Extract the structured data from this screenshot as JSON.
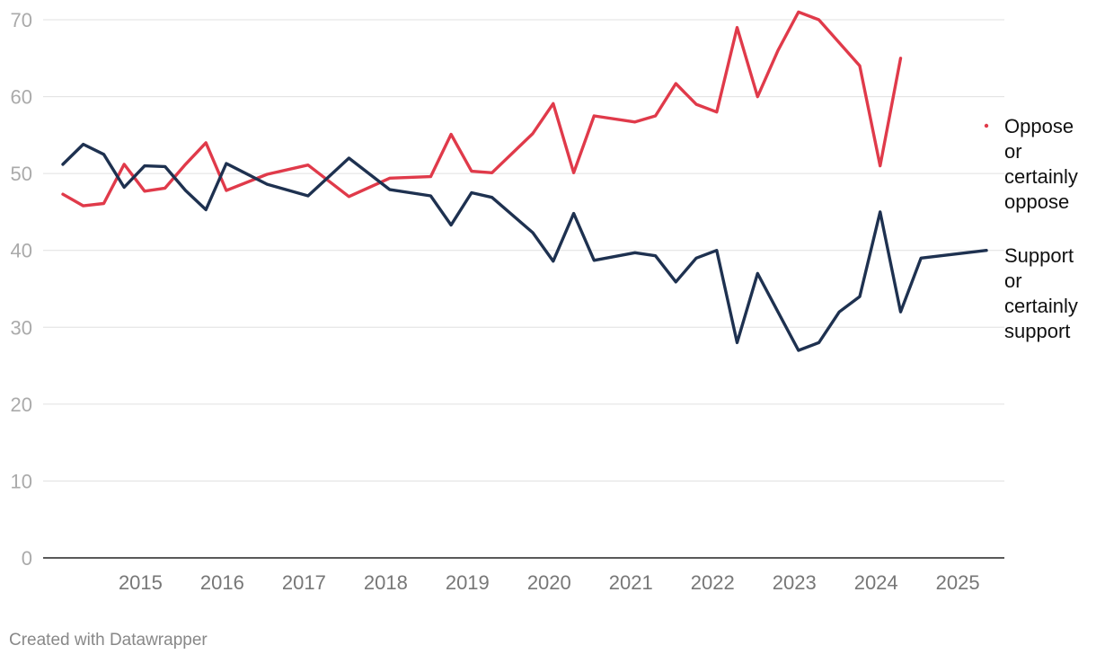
{
  "chart_data": {
    "type": "line",
    "title": "",
    "xlabel": "",
    "ylabel": "",
    "x_range": [
      2014.05,
      2025.35
    ],
    "ylim": [
      0,
      70
    ],
    "y_ticks": [
      0,
      10,
      20,
      30,
      40,
      50,
      60,
      70
    ],
    "x_tick_labels": [
      "2015",
      "2016",
      "2017",
      "2018",
      "2019",
      "2020",
      "2021",
      "2022",
      "2023",
      "2024",
      "2025"
    ],
    "grid": true,
    "legend": "right",
    "series": [
      {
        "name": "Oppose or certainly oppose",
        "legend_lines": [
          "Oppose",
          "or",
          "certainly",
          "oppose"
        ],
        "color": "#e03a4a",
        "points": [
          [
            2014.05,
            47.3
          ],
          [
            2014.3,
            45.8
          ],
          [
            2014.55,
            46.1
          ],
          [
            2014.8,
            51.2
          ],
          [
            2015.05,
            47.7
          ],
          [
            2015.3,
            48.1
          ],
          [
            2015.55,
            51.2
          ],
          [
            2015.8,
            54.0
          ],
          [
            2016.05,
            47.8
          ],
          [
            2016.55,
            49.9
          ],
          [
            2017.05,
            51.1
          ],
          [
            2017.55,
            47.0
          ],
          [
            2018.05,
            49.4
          ],
          [
            2018.55,
            49.6
          ],
          [
            2018.8,
            55.1
          ],
          [
            2019.05,
            50.3
          ],
          [
            2019.3,
            50.1
          ],
          [
            2019.8,
            55.2
          ],
          [
            2020.05,
            59.1
          ],
          [
            2020.3,
            50.1
          ],
          [
            2020.55,
            57.5
          ],
          [
            2021.05,
            56.7
          ],
          [
            2021.3,
            57.5
          ],
          [
            2021.55,
            61.7
          ],
          [
            2021.8,
            59.0
          ],
          [
            2022.05,
            58.0
          ],
          [
            2022.3,
            69.0
          ],
          [
            2022.55,
            60.0
          ],
          [
            2022.8,
            66.0
          ],
          [
            2023.05,
            71.0
          ],
          [
            2023.3,
            70.0
          ],
          [
            2023.8,
            64.0
          ],
          [
            2024.05,
            51.0
          ],
          [
            2024.3,
            65.0
          ]
        ]
      },
      {
        "name": "Support or certainly support",
        "legend_lines": [
          "Support",
          "or",
          "certainly",
          "support"
        ],
        "color": "#1e3150",
        "points": [
          [
            2014.05,
            51.2
          ],
          [
            2014.3,
            53.8
          ],
          [
            2014.55,
            52.5
          ],
          [
            2014.8,
            48.2
          ],
          [
            2015.05,
            51.0
          ],
          [
            2015.3,
            50.9
          ],
          [
            2015.55,
            47.8
          ],
          [
            2015.8,
            45.3
          ],
          [
            2016.05,
            51.3
          ],
          [
            2016.55,
            48.6
          ],
          [
            2017.05,
            47.1
          ],
          [
            2017.55,
            52.0
          ],
          [
            2018.05,
            47.9
          ],
          [
            2018.55,
            47.1
          ],
          [
            2018.8,
            43.3
          ],
          [
            2019.05,
            47.5
          ],
          [
            2019.3,
            46.9
          ],
          [
            2019.8,
            42.3
          ],
          [
            2020.05,
            38.6
          ],
          [
            2020.3,
            44.8
          ],
          [
            2020.55,
            38.7
          ],
          [
            2021.05,
            39.7
          ],
          [
            2021.3,
            39.3
          ],
          [
            2021.55,
            35.9
          ],
          [
            2021.8,
            39.0
          ],
          [
            2022.05,
            40.0
          ],
          [
            2022.3,
            28.0
          ],
          [
            2022.55,
            37.0
          ],
          [
            2022.8,
            32.0
          ],
          [
            2023.05,
            27.0
          ],
          [
            2023.3,
            28.0
          ],
          [
            2023.55,
            32.0
          ],
          [
            2023.8,
            34.0
          ],
          [
            2024.05,
            45.0
          ],
          [
            2024.3,
            32.0
          ],
          [
            2024.55,
            39.0
          ],
          [
            2025.35,
            40.0
          ]
        ]
      }
    ]
  },
  "footer": {
    "credit": "Created with Datawrapper"
  }
}
